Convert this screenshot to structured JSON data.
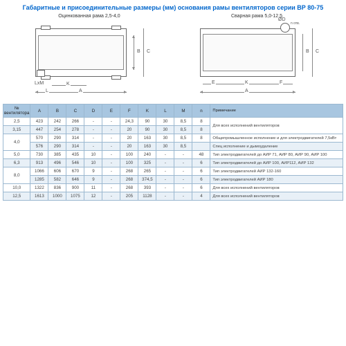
{
  "title": "Габаритные и присоединительные размеры (мм) основания рамы вентиляторов серии ВР 80-75",
  "diagrams": {
    "left_label": "Оцинкованная рама 2,5-4,0",
    "right_label": "Сварная рама 5,0-12,5",
    "dim_A": "A",
    "dim_B": "B",
    "dim_C": "C",
    "dim_K": "K",
    "dim_L": "L",
    "dim_E": "E",
    "dim_F": "F",
    "dim_D": "ØD",
    "dim_LM": "LxM",
    "n_holes": "n отв."
  },
  "table": {
    "headers": [
      "№ вентилятора",
      "A",
      "B",
      "C",
      "D",
      "E",
      "F",
      "K",
      "L",
      "M",
      "n",
      "Примечание"
    ],
    "rows": [
      [
        "2,5",
        "423",
        "242",
        "266",
        "-",
        "-",
        "24,3",
        "90",
        "30",
        "8,5",
        "8",
        ""
      ],
      [
        "3,15",
        "447",
        "254",
        "278",
        "-",
        "-",
        "20",
        "90",
        "30",
        "8,5",
        "8",
        "Для всех исполнений вентиляторов"
      ],
      [
        "4,0",
        "570",
        "290",
        "314",
        "-",
        "-",
        "20",
        "163",
        "30",
        "8,5",
        "8",
        "Общепромышленное исполнение и для электродвигателей 7,5кВт"
      ],
      [
        "4,0",
        "576",
        "290",
        "314",
        "-",
        "-",
        "20",
        "163",
        "30",
        "8,5",
        "",
        "Спец исполнение и дымоудаление"
      ],
      [
        "5,0",
        "730",
        "385",
        "435",
        "10",
        "-",
        "100",
        "240",
        "-",
        "-",
        "48",
        "Тип электродвигателей до АИР 71, АИР 80, АИР 90, АИР 100"
      ],
      [
        "6,3",
        "913",
        "496",
        "546",
        "10",
        "-",
        "100",
        "325",
        "-",
        "-",
        "6",
        "Тип электродвигателей до АИР 100, АИР112, АИР 132"
      ],
      [
        "8,0",
        "1066",
        "606",
        "670",
        "9",
        "-",
        "268",
        "265",
        "-",
        "-",
        "6",
        "Тип электродвигателей АИР 132-160"
      ],
      [
        "8,0",
        "1285",
        "582",
        "646",
        "9",
        "-",
        "268",
        "374,5",
        "-",
        "-",
        "6",
        "Тип электродвигателей АИР 180"
      ],
      [
        "10,0",
        "1322",
        "836",
        "900",
        "11",
        "-",
        "268",
        "393",
        "-",
        "-",
        "6",
        "Для всех исполнений вентиляторов"
      ],
      [
        "12,5",
        "1613",
        "1000",
        "1075",
        "12",
        "-",
        "205",
        "1128",
        "-",
        "-",
        "4",
        "Для всех исполнений вентиляторов"
      ]
    ]
  },
  "styling": {
    "title_color": "#0066cc",
    "header_bg": "#a8c6e0",
    "row_alt_bg": "#e8f0f7",
    "border_color": "#9bb8d0",
    "line_color": "#888888"
  }
}
